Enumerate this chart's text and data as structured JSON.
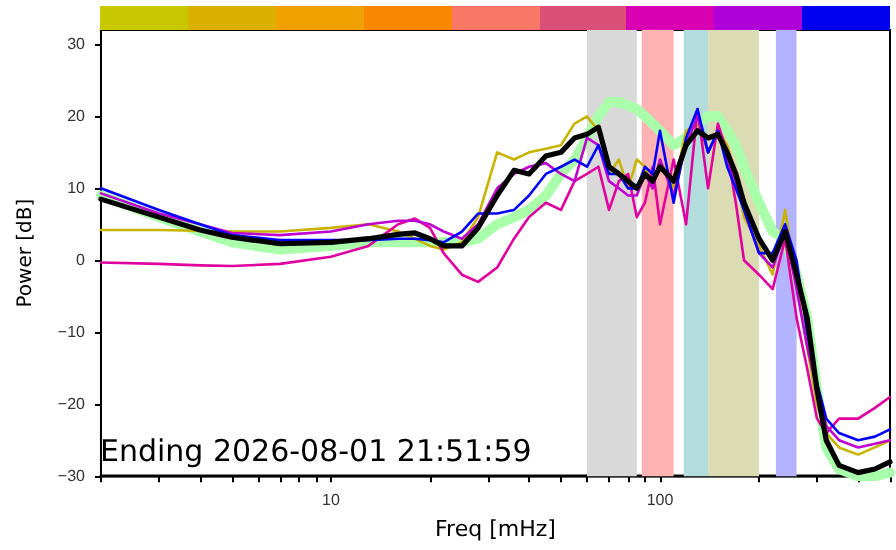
{
  "chart_data": {
    "type": "line",
    "xlabel": "Freq [mHz]",
    "ylabel": "Power [dB]",
    "log": "x",
    "grid": false,
    "marker": "none",
    "line_style": "solid",
    "annotations": [
      "Ending 2026-08-01 21:51:59"
    ],
    "xlim": [
      2,
      500
    ],
    "ylim": [
      -30,
      32
    ],
    "xticks": [
      {
        "value": 2,
        "label": null
      },
      {
        "value": 3,
        "label": null
      },
      {
        "value": 4,
        "label": null
      },
      {
        "value": 5,
        "label": null
      },
      {
        "value": 6,
        "label": null
      },
      {
        "value": 7,
        "label": null
      },
      {
        "value": 8,
        "label": null
      },
      {
        "value": 9,
        "label": null
      },
      10,
      {
        "value": 20,
        "label": null
      },
      {
        "value": 30,
        "label": null
      },
      {
        "value": 40,
        "label": null
      },
      {
        "value": 50,
        "label": null
      },
      {
        "value": 60,
        "label": null
      },
      {
        "value": 70,
        "label": null
      },
      {
        "value": 80,
        "label": null
      },
      {
        "value": 90,
        "label": null
      },
      100,
      {
        "value": 200,
        "label": null
      },
      {
        "value": 300,
        "label": null
      },
      {
        "value": 400,
        "label": null
      },
      {
        "value": 500,
        "label": null
      }
    ],
    "yticks": [
      -30,
      -20,
      -10,
      0,
      10,
      20,
      30
    ],
    "x": [
      2,
      3,
      4,
      5,
      7,
      10,
      13,
      16,
      18,
      20,
      22,
      25,
      28,
      32,
      36,
      40,
      45,
      50,
      55,
      60,
      65,
      70,
      75,
      80,
      85,
      90,
      95,
      100,
      110,
      120,
      130,
      140,
      150,
      160,
      170,
      180,
      200,
      220,
      240,
      260,
      280,
      300,
      320,
      350,
      400,
      450,
      500
    ],
    "bands": [
      {
        "axis": "x",
        "from": 60,
        "to": 85,
        "color": "#d9d9d9"
      },
      {
        "axis": "x",
        "from": 88,
        "to": 110,
        "color": "#ffb3b3"
      },
      {
        "axis": "x",
        "from": 118,
        "to": 140,
        "color": "#b3dcdc"
      },
      {
        "axis": "x",
        "from": 140,
        "to": 200,
        "color": "#dcdcb4"
      },
      {
        "axis": "x",
        "from": 225,
        "to": 260,
        "color": "#b3b3ff"
      }
    ],
    "series": [
      {
        "color": "#aaffaa",
        "values": [
          9,
          6,
          4,
          2.5,
          1.5,
          2,
          2.5,
          2.5,
          2.5,
          2.5,
          2.5,
          2.5,
          3,
          5,
          6,
          7,
          9,
          12,
          14,
          17,
          20,
          22,
          22,
          21.5,
          21,
          20,
          19,
          18,
          16,
          17,
          19,
          20,
          20,
          18,
          16,
          13,
          8,
          4,
          3,
          -2,
          -8,
          -18,
          -26,
          -29,
          -30,
          -30,
          -29.5
        ]
      },
      {
        "color": "#c8b400",
        "values": [
          4.2,
          4.2,
          4.1,
          4,
          4,
          4.5,
          5,
          4,
          3,
          2,
          1.5,
          2.5,
          6,
          15,
          14,
          15,
          15.5,
          16,
          19,
          20,
          18,
          12,
          14,
          10,
          14,
          13,
          10,
          14,
          10,
          18,
          19,
          15,
          18,
          16,
          12,
          6,
          2,
          -2,
          7,
          -3,
          -12,
          -20,
          -24,
          -26,
          -27,
          -26,
          -25
        ]
      },
      {
        "color": "#e000a0",
        "values": [
          -0.3,
          -0.5,
          -0.7,
          -0.8,
          -0.5,
          0.5,
          2,
          5,
          5.8,
          4.5,
          1,
          -2,
          -3,
          -1,
          3,
          6,
          8,
          7,
          11,
          12,
          13,
          7,
          11,
          12,
          6,
          8,
          13,
          5,
          14,
          5,
          21,
          10,
          19,
          15,
          8,
          0,
          -2,
          -4,
          3,
          -8,
          -15,
          -22,
          -24,
          -22,
          -22,
          -20.5,
          -19
        ]
      },
      {
        "color": "#c000d0",
        "values": [
          9.3,
          6.5,
          5,
          3.8,
          3.5,
          4,
          5,
          5.5,
          5.5,
          5,
          4,
          3,
          5,
          10,
          12,
          13,
          13.5,
          12,
          11,
          17,
          16,
          11,
          10,
          9,
          9,
          12,
          10,
          14,
          9,
          16,
          20,
          15,
          18,
          14,
          11,
          7,
          1,
          -1,
          4,
          -4,
          -12,
          -18,
          -23,
          -25,
          -26,
          -25.5,
          -25
        ]
      },
      {
        "color": "#0000ff",
        "values": [
          10,
          7,
          5,
          3.5,
          2.8,
          2.8,
          2.8,
          3,
          3,
          2.8,
          2.5,
          4,
          6.5,
          6.5,
          7,
          9,
          12,
          13,
          14,
          13,
          16,
          12,
          12,
          10,
          10,
          13,
          12,
          18,
          8,
          17,
          21,
          15,
          18,
          13,
          10,
          7,
          1,
          1,
          5,
          0,
          -10,
          -17,
          -22,
          -24,
          -25,
          -24.5,
          -23.5
        ]
      },
      {
        "color": "#000000",
        "values": [
          8.5,
          6,
          4.2,
          3.2,
          2.3,
          2.5,
          3,
          3.6,
          3.8,
          3,
          2,
          2,
          4.5,
          9,
          12.5,
          12,
          14.5,
          15,
          17,
          17.5,
          18.5,
          13,
          12,
          11,
          10,
          12,
          11,
          13,
          11,
          16,
          18,
          17,
          17.5,
          15,
          12,
          8,
          3,
          0,
          4,
          -2,
          -8,
          -18,
          -25,
          -28.5,
          -29.5,
          -29,
          -28
        ]
      }
    ]
  }
}
